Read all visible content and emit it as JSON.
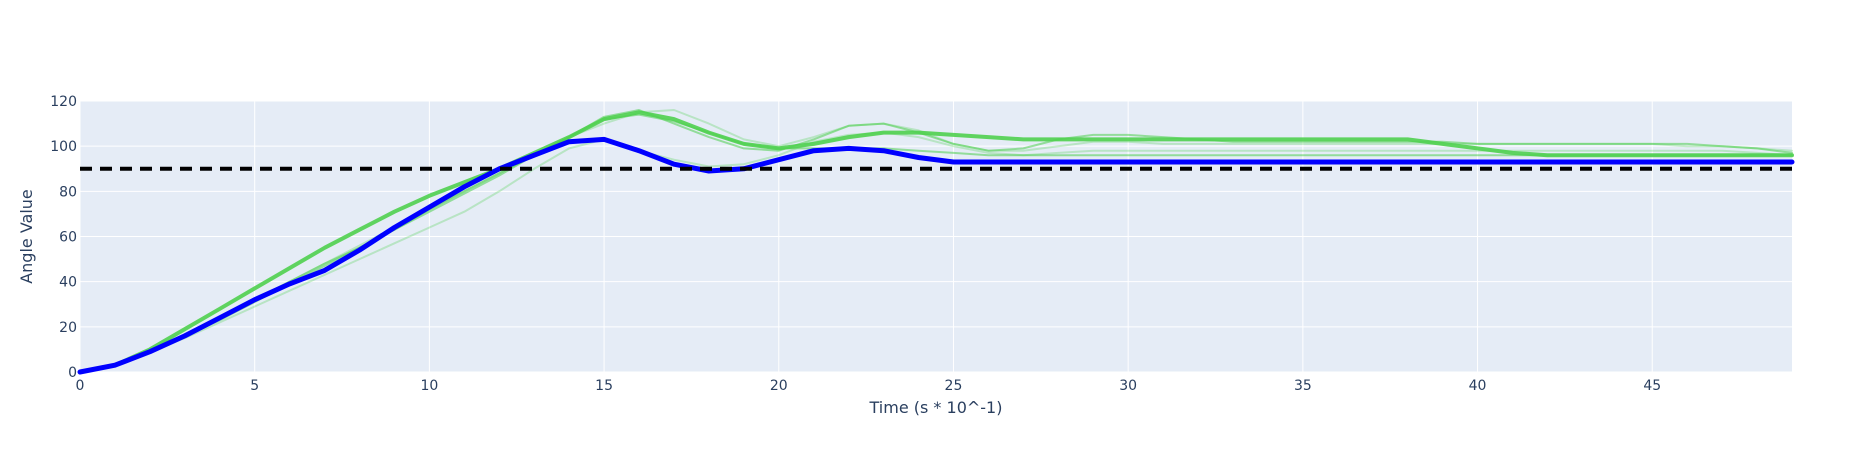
{
  "chart_data": {
    "type": "line",
    "title": "",
    "xlabel": "Time (s * 10^-1)",
    "ylabel": "Angle Value",
    "xlim": [
      0,
      49
    ],
    "ylim": [
      0,
      120
    ],
    "x_ticks": [
      0,
      5,
      10,
      15,
      20,
      25,
      30,
      35,
      40,
      45
    ],
    "y_ticks": [
      0,
      20,
      40,
      60,
      80,
      100,
      120
    ],
    "grid": true,
    "legend": "none",
    "colors": {
      "plot_background": "#e5ecf6",
      "grid": "#ffffff",
      "main_series": "#0000ff",
      "other_series": "#4fd04f",
      "reference": "#000000",
      "text": "#2a3f5f"
    },
    "reference_line": {
      "y": 90,
      "style": "dashed"
    },
    "x": [
      0,
      1,
      2,
      3,
      4,
      5,
      6,
      7,
      8,
      9,
      10,
      11,
      12,
      13,
      14,
      15,
      16,
      17,
      18,
      19,
      20,
      21,
      22,
      23,
      24,
      25,
      26,
      27,
      28,
      29,
      30,
      31,
      32,
      33,
      34,
      35,
      36,
      37,
      38,
      39,
      40,
      41,
      42,
      43,
      44,
      45,
      46,
      47,
      48,
      49
    ],
    "series": [
      {
        "color": "#4fd04f",
        "opacity": 0.3,
        "width": 2,
        "values": [
          0,
          3,
          9,
          15,
          22,
          29,
          36,
          43,
          50,
          57,
          64,
          71,
          80,
          90,
          99,
          103,
          98,
          94,
          91,
          92,
          96,
          102,
          105,
          106,
          104,
          100,
          97,
          96,
          97,
          98,
          98,
          98,
          98,
          98,
          98,
          98,
          98,
          98,
          98,
          98,
          98,
          98,
          98,
          98,
          98,
          98,
          98,
          98,
          97,
          96
        ]
      },
      {
        "color": "#4fd04f",
        "opacity": 0.3,
        "width": 2,
        "values": [
          0,
          3,
          9,
          16,
          24,
          32,
          40,
          48,
          56,
          64,
          72,
          80,
          88,
          96,
          104,
          110,
          115,
          116,
          110,
          103,
          100,
          104,
          109,
          110,
          107,
          101,
          98,
          98,
          100,
          102,
          102,
          101,
          101,
          101,
          101,
          101,
          101,
          101,
          101,
          101,
          101,
          101,
          101,
          101,
          101,
          101,
          100,
          100,
          99,
          98
        ]
      },
      {
        "color": "#4fd04f",
        "opacity": 0.55,
        "width": 2,
        "values": [
          0,
          3,
          9,
          16,
          23,
          31,
          39,
          47,
          55,
          63,
          72,
          80,
          88,
          96,
          104,
          113,
          116,
          110,
          104,
          99,
          98,
          103,
          109,
          110,
          106,
          101,
          98,
          99,
          103,
          105,
          105,
          104,
          103,
          102,
          102,
          102,
          102,
          102,
          102,
          102,
          101,
          101,
          101,
          101,
          101,
          101,
          101,
          100,
          99,
          97
        ]
      },
      {
        "color": "#4fd04f",
        "opacity": 0.55,
        "width": 2,
        "values": [
          0,
          3,
          9,
          16,
          24,
          32,
          40,
          48,
          55,
          63,
          71,
          79,
          87,
          96,
          104,
          112,
          114,
          111,
          106,
          101,
          99,
          99,
          99,
          99,
          98,
          97,
          96,
          96,
          96,
          96,
          96,
          96,
          96,
          96,
          96,
          96,
          96,
          96,
          96,
          96,
          96,
          96,
          96,
          96,
          96,
          96,
          96,
          96,
          96,
          96
        ]
      },
      {
        "color": "#4fd04f",
        "opacity": 0.9,
        "width": 4,
        "values": [
          0,
          3,
          10,
          19,
          28,
          37,
          46,
          55,
          63,
          71,
          78,
          84,
          90,
          97,
          104,
          112,
          115,
          112,
          106,
          101,
          99,
          101,
          104,
          106,
          106,
          105,
          104,
          103,
          103,
          103,
          103,
          103,
          103,
          103,
          103,
          103,
          103,
          103,
          103,
          101,
          99,
          97,
          96,
          96,
          96,
          96,
          96,
          96,
          96,
          96
        ]
      },
      {
        "color": "#0000ff",
        "opacity": 1,
        "width": 5,
        "values": [
          0,
          3,
          9,
          16,
          24,
          32,
          39,
          45,
          54,
          64,
          73,
          82,
          90,
          96,
          102,
          103,
          98,
          92,
          89,
          90,
          94,
          98,
          99,
          98,
          95,
          93,
          93,
          93,
          93,
          93,
          93,
          93,
          93,
          93,
          93,
          93,
          93,
          93,
          93,
          93,
          93,
          93,
          93,
          93,
          93,
          93,
          93,
          93,
          93,
          93
        ]
      }
    ]
  }
}
